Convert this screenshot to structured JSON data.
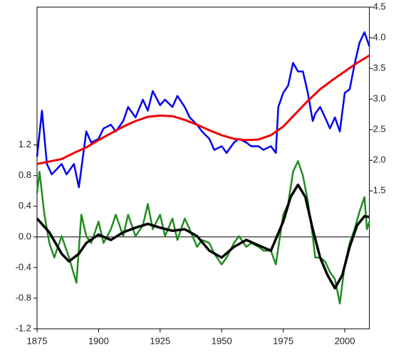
{
  "chart_data": {
    "type": "line",
    "xlim": [
      1875,
      2010
    ],
    "xticks": [
      1875,
      1900,
      1925,
      1950,
      1975,
      2000
    ],
    "ylim": [
      -1.2,
      3.0
    ],
    "yticks": [
      -1.2,
      -0.8,
      -0.4,
      {
        "value": 0,
        "label": "0.0"
      },
      0.4,
      0.8,
      1.2
    ],
    "y2lim": [
      -0.75,
      4.5
    ],
    "y2ticks": [
      1.5,
      {
        "value": 2,
        "label": "2.0"
      },
      2.5,
      {
        "value": 3,
        "label": "3.0"
      },
      3.5,
      {
        "value": 4,
        "label": "4.0"
      },
      4.5
    ],
    "series": [
      {
        "color": "#0000ee",
        "axis": "y2",
        "width": 2.5,
        "x": [
          1875,
          1877,
          1879,
          1881,
          1885,
          1887,
          1890,
          1892,
          1895,
          1897,
          1900,
          1902,
          1905,
          1907,
          1910,
          1912,
          1915,
          1918,
          1920,
          1922,
          1925,
          1927,
          1930,
          1932,
          1935,
          1937,
          1940,
          1942,
          1945,
          1947,
          1950,
          1952,
          1955,
          1957,
          1960,
          1962,
          1965,
          1967,
          1970,
          1972,
          1973,
          1975,
          1977,
          1979,
          1981,
          1983,
          1985,
          1987,
          1988,
          1990,
          1992,
          1994,
          1996,
          1998,
          2000,
          2002,
          2004,
          2006,
          2008,
          2010
        ],
        "values": [
          2.06,
          2.81,
          1.94,
          1.77,
          1.94,
          1.77,
          1.94,
          1.56,
          2.47,
          2.29,
          2.35,
          2.52,
          2.58,
          2.47,
          2.64,
          2.87,
          2.7,
          2.99,
          2.81,
          3.13,
          2.9,
          2.99,
          2.87,
          3.05,
          2.87,
          2.7,
          2.58,
          2.47,
          2.35,
          2.17,
          2.23,
          2.12,
          2.29,
          2.35,
          2.29,
          2.23,
          2.23,
          2.17,
          2.23,
          2.12,
          2.87,
          3.1,
          3.22,
          3.59,
          3.45,
          3.45,
          3.1,
          2.64,
          2.76,
          2.87,
          2.7,
          2.52,
          2.7,
          2.47,
          3.1,
          3.16,
          3.57,
          3.92,
          4.09,
          3.86
        ]
      },
      {
        "color": "#ee0000",
        "axis": "y2",
        "width": 3,
        "x": [
          1875,
          1880,
          1885,
          1890,
          1895,
          1900,
          1905,
          1910,
          1915,
          1920,
          1925,
          1930,
          1935,
          1940,
          1945,
          1950,
          1955,
          1960,
          1965,
          1970,
          1975,
          1980,
          1985,
          1990,
          1995,
          2000,
          2005,
          2010
        ],
        "values": [
          1.94,
          1.98,
          2.02,
          2.12,
          2.21,
          2.33,
          2.44,
          2.55,
          2.64,
          2.71,
          2.73,
          2.72,
          2.66,
          2.58,
          2.49,
          2.41,
          2.35,
          2.33,
          2.34,
          2.41,
          2.55,
          2.76,
          2.97,
          3.16,
          3.31,
          3.45,
          3.59,
          3.71
        ]
      },
      {
        "color": "#228b22",
        "width": 2.5,
        "x": [
          1875,
          1876,
          1878,
          1880,
          1882,
          1885,
          1888,
          1891,
          1893,
          1895,
          1897,
          1900,
          1902,
          1905,
          1907,
          1910,
          1912,
          1915,
          1918,
          1920,
          1922,
          1925,
          1927,
          1930,
          1932,
          1935,
          1937,
          1940,
          1942,
          1945,
          1947,
          1950,
          1952,
          1955,
          1957,
          1960,
          1962,
          1965,
          1967,
          1970,
          1972,
          1975,
          1977,
          1979,
          1981,
          1983,
          1985,
          1987,
          1988,
          1990,
          1992,
          1994,
          1996,
          1998,
          2000,
          2002,
          2004,
          2006,
          2008,
          2009,
          2010
        ],
        "values": [
          0.57,
          0.85,
          0.29,
          -0.08,
          -0.27,
          0.01,
          -0.27,
          -0.6,
          0.29,
          0.01,
          -0.08,
          0.2,
          -0.08,
          0.1,
          0.29,
          0.01,
          0.29,
          0.01,
          0.15,
          0.43,
          0.1,
          0.29,
          0.01,
          0.24,
          -0.04,
          0.24,
          0.1,
          -0.13,
          -0.04,
          -0.08,
          -0.22,
          -0.36,
          -0.27,
          -0.08,
          0.01,
          -0.13,
          -0.08,
          -0.13,
          -0.18,
          -0.18,
          -0.36,
          0.29,
          0.43,
          0.85,
          0.99,
          0.8,
          0.47,
          0.01,
          -0.27,
          -0.27,
          -0.32,
          -0.46,
          -0.55,
          -0.87,
          -0.36,
          -0.08,
          0.1,
          0.33,
          0.52,
          0.1,
          0.2
        ]
      },
      {
        "color": "#000000",
        "width": 3.5,
        "x": [
          1875,
          1880,
          1885,
          1888,
          1892,
          1895,
          1900,
          1905,
          1910,
          1915,
          1920,
          1925,
          1930,
          1935,
          1940,
          1945,
          1950,
          1955,
          1960,
          1965,
          1970,
          1975,
          1978,
          1981,
          1984,
          1987,
          1990,
          1993,
          1996,
          1999,
          2002,
          2005,
          2008,
          2010
        ],
        "values": [
          0.24,
          0.06,
          -0.22,
          -0.32,
          -0.22,
          -0.08,
          0.03,
          -0.04,
          0.06,
          0.12,
          0.17,
          0.12,
          0.08,
          0.1,
          0.01,
          -0.18,
          -0.27,
          -0.13,
          -0.04,
          -0.11,
          -0.18,
          0.2,
          0.52,
          0.68,
          0.52,
          0.1,
          -0.27,
          -0.5,
          -0.67,
          -0.5,
          -0.13,
          0.15,
          0.27,
          0.26
        ]
      }
    ]
  }
}
